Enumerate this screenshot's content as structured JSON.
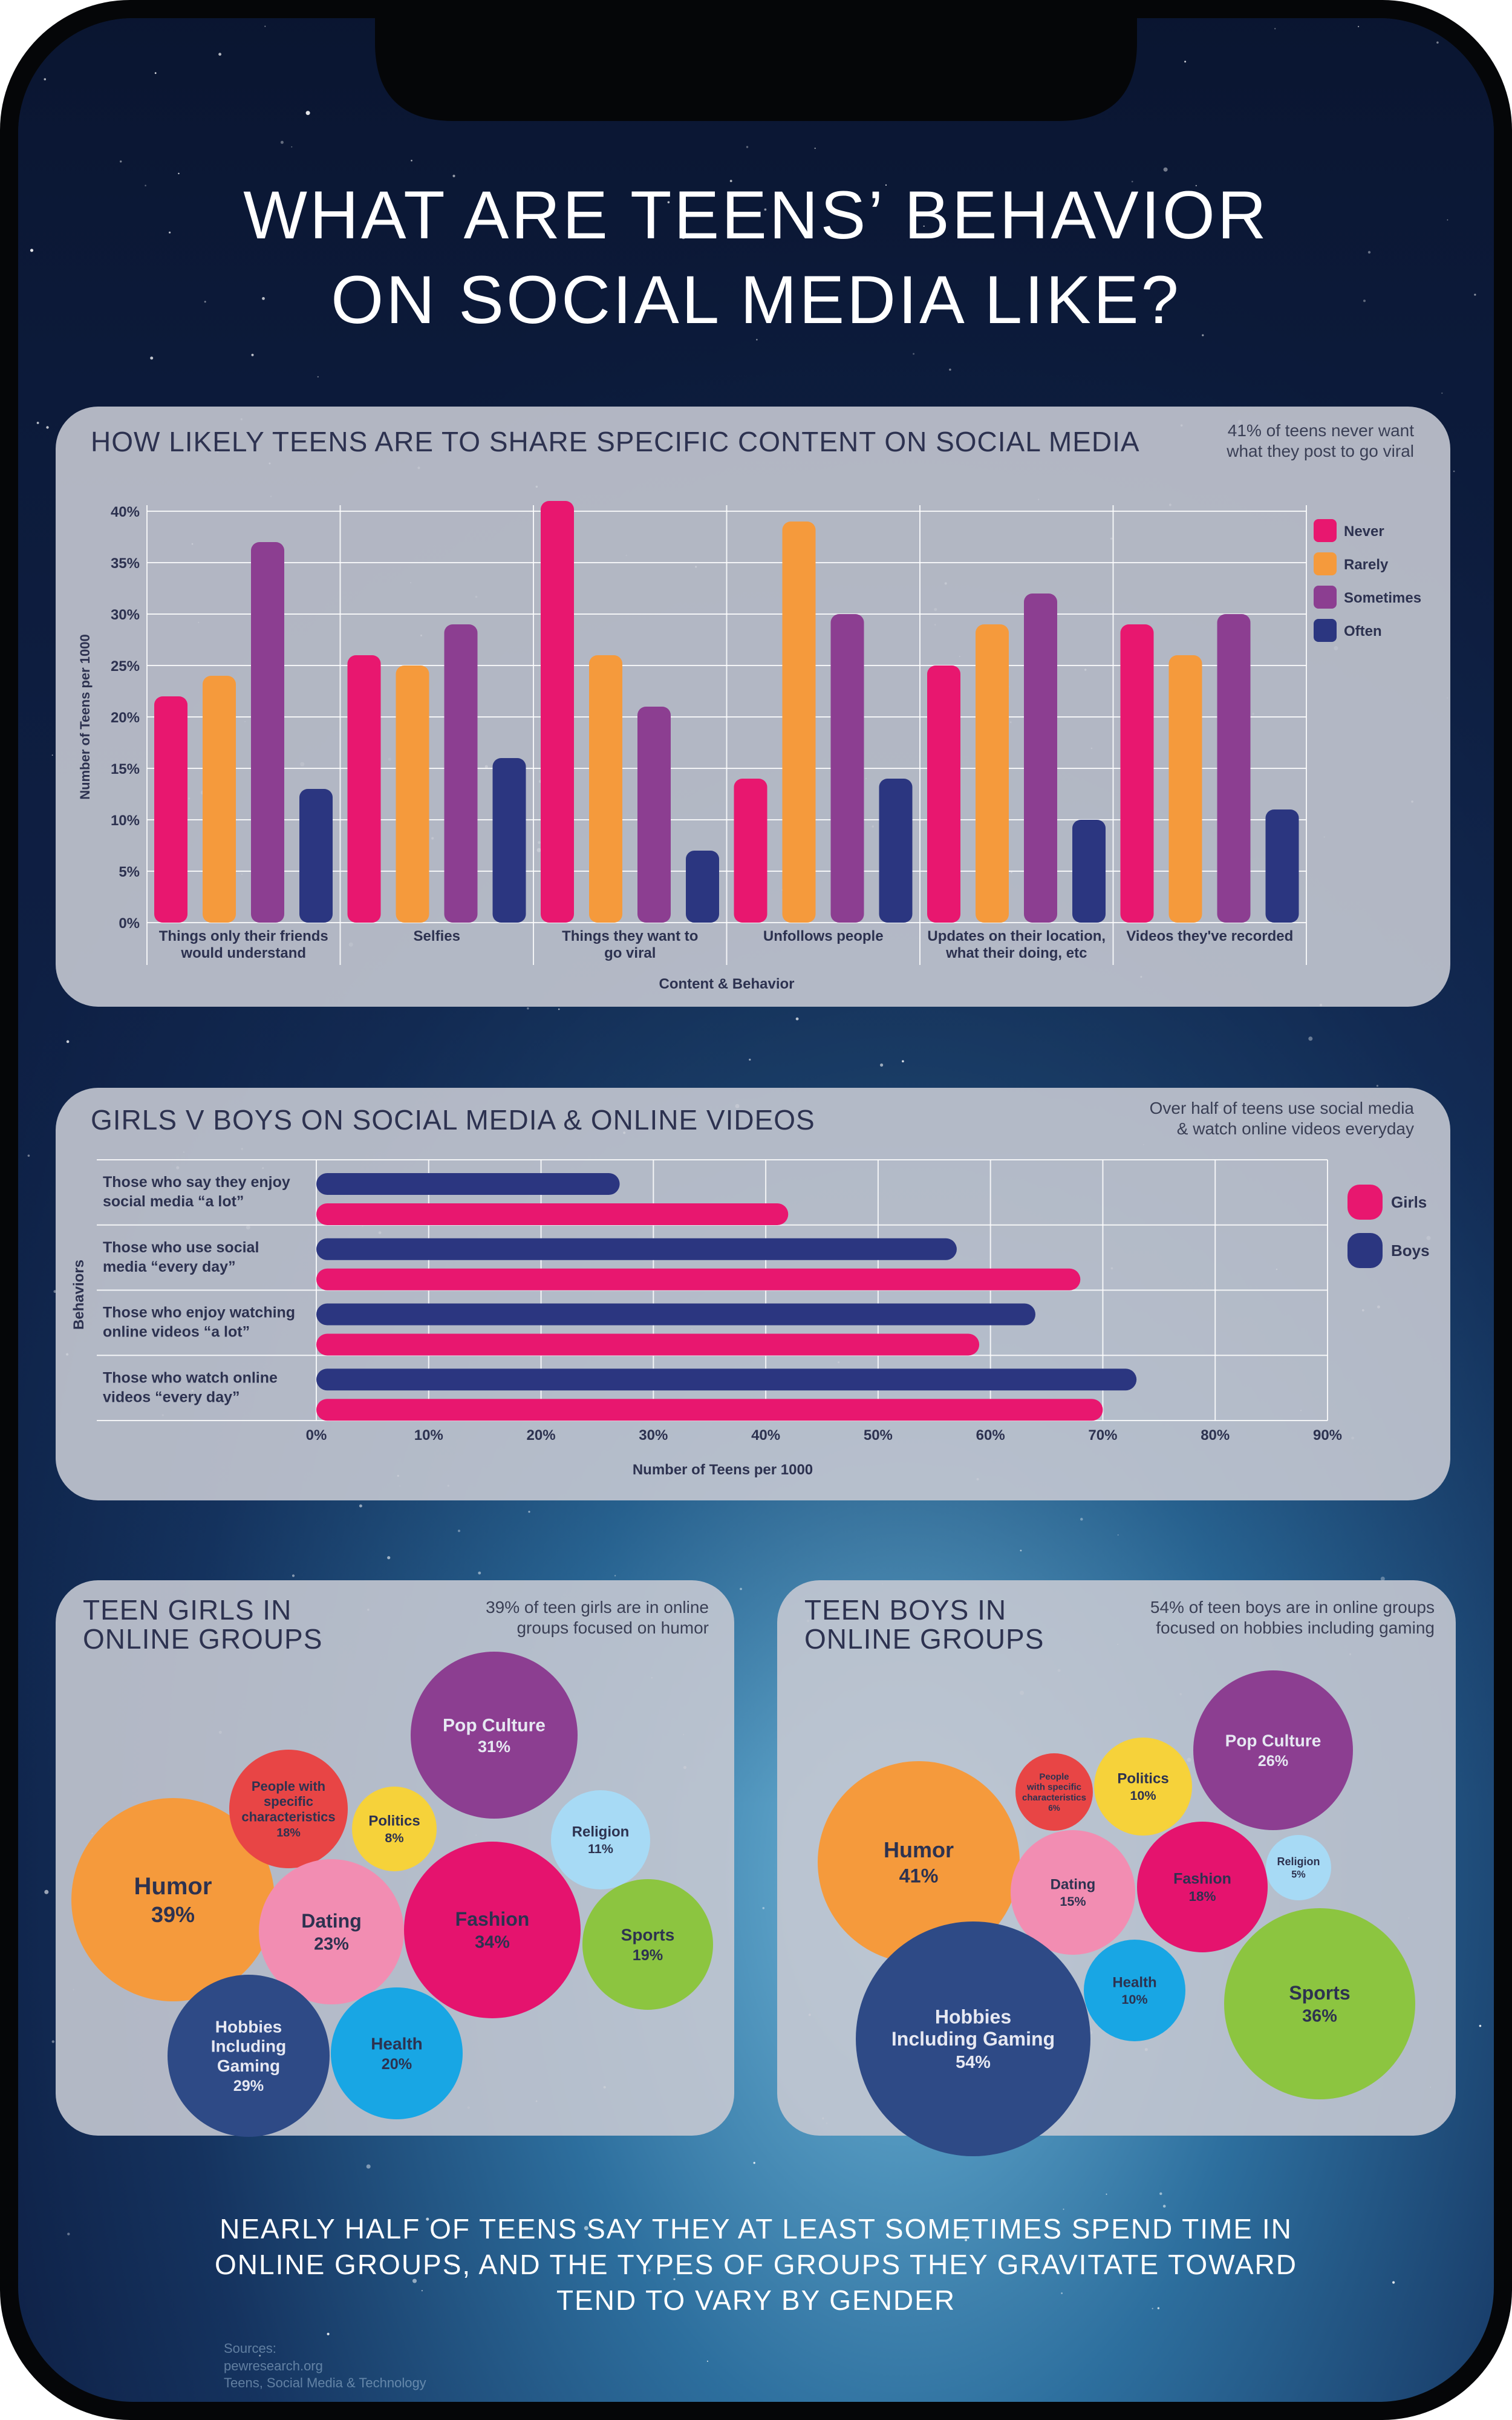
{
  "page": {
    "title_line1": "WHAT ARE TEENS’ BEHAVIOR",
    "title_line2": "ON SOCIAL MEDIA LIKE?",
    "footer_line1": "NEARLY HALF OF TEENS SAY THEY AT LEAST SOMETIMES SPEND TIME IN",
    "footer_line2": "ONLINE GROUPS, AND THE TYPES OF GROUPS THEY GRAVITATE TOWARD",
    "footer_line3": "TEND TO VARY BY GENDER",
    "source_line1": "Sources:",
    "source_line2": "pewresearch.org",
    "source_line3": "Teens, Social Media & Technology"
  },
  "colors": {
    "never": "#e8176f",
    "rarely": "#f59a3c",
    "sometimes": "#8c3e91",
    "often": "#2b3680",
    "girls": "#e8176f",
    "boys": "#2b3680"
  },
  "chart_data": [
    {
      "type": "bar",
      "title": "HOW LIKELY TEENS ARE TO SHARE SPECIFIC CONTENT ON SOCIAL MEDIA",
      "note_line1": "41% of teens never want",
      "note_line2": "what they post to go viral",
      "categories": [
        [
          "Things only their friends",
          "would understand"
        ],
        [
          "Selfies"
        ],
        [
          "Things they want to",
          "go viral"
        ],
        [
          "Unfollows people"
        ],
        [
          "Updates on their location,",
          "what their doing, etc"
        ],
        [
          "Videos they've recorded"
        ]
      ],
      "series": [
        {
          "name": "Never",
          "color": "#e8176f",
          "values": [
            22,
            26,
            41,
            14,
            25,
            29
          ]
        },
        {
          "name": "Rarely",
          "color": "#f59a3c",
          "values": [
            24,
            25,
            26,
            39,
            29,
            26
          ]
        },
        {
          "name": "Sometimes",
          "color": "#8c3e91",
          "values": [
            37,
            29,
            21,
            30,
            32,
            30
          ]
        },
        {
          "name": "Often",
          "color": "#2b3680",
          "values": [
            13,
            16,
            7,
            14,
            10,
            11
          ]
        }
      ],
      "ylim": [
        0,
        40
      ],
      "yticks": [
        "0%",
        "5%",
        "10%",
        "15%",
        "20%",
        "25%",
        "30%",
        "35%",
        "40%"
      ],
      "xlabel": "Content & Behavior",
      "ylabel": "Number of Teens per 1000"
    },
    {
      "type": "bar",
      "orientation": "horizontal",
      "title": "GIRLS V BOYS ON SOCIAL MEDIA & ONLINE VIDEOS",
      "note_line1": "Over half of teens use social media",
      "note_line2": "& watch online videos everyday",
      "categories": [
        [
          "Those who say they enjoy",
          "social media “a lot”"
        ],
        [
          "Those who use social",
          "media “every day”"
        ],
        [
          "Those who enjoy watching",
          "online videos “a lot”"
        ],
        [
          "Those who watch online",
          "videos “every day”"
        ]
      ],
      "series": [
        {
          "name": "Boys",
          "color": "#2b3680",
          "values": [
            27,
            57,
            64,
            73
          ]
        },
        {
          "name": "Girls",
          "color": "#e8176f",
          "values": [
            42,
            68,
            59,
            70
          ]
        }
      ],
      "legend": [
        "Girls",
        "Boys"
      ],
      "xlim": [
        0,
        90
      ],
      "xticks": [
        "0%",
        "10%",
        "20%",
        "30%",
        "40%",
        "50%",
        "60%",
        "70%",
        "80%",
        "90%"
      ],
      "xlabel": "Number of Teens per 1000",
      "ylabel": "Behaviors"
    },
    {
      "type": "bubble",
      "title_line1": "TEEN GIRLS IN",
      "title_line2": "ONLINE GROUPS",
      "note_line1": "39% of teen girls are in online",
      "note_line2": "groups focused on humor",
      "items": [
        {
          "label": [
            "Humor"
          ],
          "value": "39%",
          "color": "#f59a3c"
        },
        {
          "label": [
            "People with",
            "specific",
            "characteristics"
          ],
          "value": "18%",
          "color": "#e84545"
        },
        {
          "label": [
            "Politics"
          ],
          "value": "8%",
          "color": "#f6d23a"
        },
        {
          "label": [
            "Pop Culture"
          ],
          "value": "31%",
          "color": "#8c3e91"
        },
        {
          "label": [
            "Religion"
          ],
          "value": "11%",
          "color": "#a7daf5"
        },
        {
          "label": [
            "Dating"
          ],
          "value": "23%",
          "color": "#f28db2"
        },
        {
          "label": [
            "Fashion"
          ],
          "value": "34%",
          "color": "#e5136e"
        },
        {
          "label": [
            "Sports"
          ],
          "value": "19%",
          "color": "#8cc540"
        },
        {
          "label": [
            "Hobbies",
            "Including",
            "Gaming"
          ],
          "value": "29%",
          "color": "#2e4a86"
        },
        {
          "label": [
            "Health"
          ],
          "value": "20%",
          "color": "#18a6e4"
        }
      ]
    },
    {
      "type": "bubble",
      "title_line1": "TEEN BOYS IN",
      "title_line2": "ONLINE GROUPS",
      "note_line1": "54% of teen boys are in online groups",
      "note_line2": "focused on hobbies including gaming",
      "items": [
        {
          "label": [
            "Humor"
          ],
          "value": "41%",
          "color": "#f59a3c"
        },
        {
          "label": [
            "People",
            "with specific",
            "characteristics"
          ],
          "value": "6%",
          "color": "#e84545"
        },
        {
          "label": [
            "Politics"
          ],
          "value": "10%",
          "color": "#f6d23a"
        },
        {
          "label": [
            "Pop Culture"
          ],
          "value": "26%",
          "color": "#8c3e91"
        },
        {
          "label": [
            "Religion"
          ],
          "value": "5%",
          "color": "#a7daf5"
        },
        {
          "label": [
            "Dating"
          ],
          "value": "15%",
          "color": "#f28db2"
        },
        {
          "label": [
            "Fashion"
          ],
          "value": "18%",
          "color": "#e5136e"
        },
        {
          "label": [
            "Sports"
          ],
          "value": "36%",
          "color": "#8cc540"
        },
        {
          "label": [
            "Hobbies",
            "Including Gaming"
          ],
          "value": "54%",
          "color": "#2e4a86"
        },
        {
          "label": [
            "Health"
          ],
          "value": "10%",
          "color": "#18a6e4"
        }
      ]
    }
  ]
}
